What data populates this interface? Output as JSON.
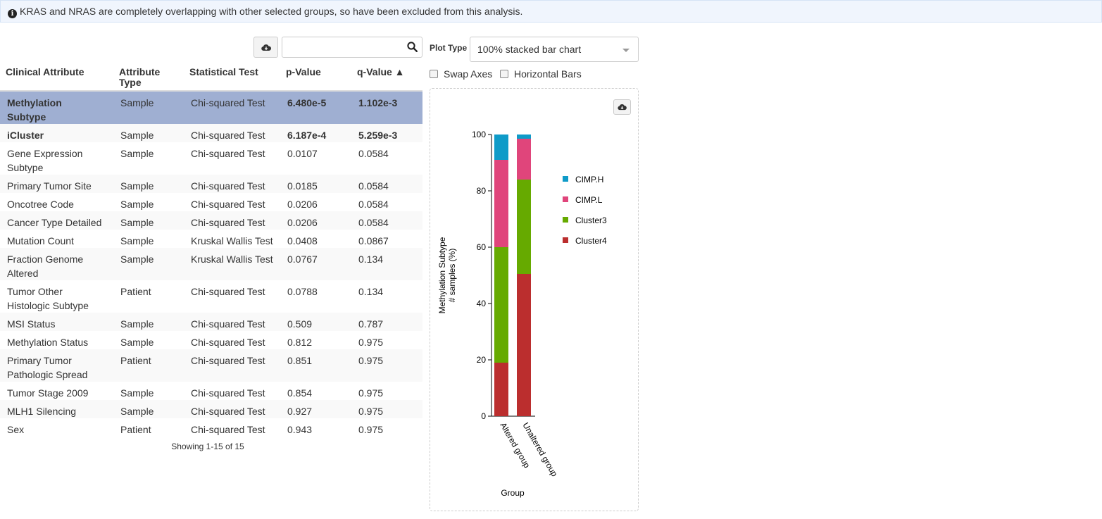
{
  "alert": {
    "icon": "info-icon",
    "text": "KRAS and NRAS are completely overlapping with other selected groups, so have been excluded from this analysis."
  },
  "toolbar": {
    "download_icon": "cloud-download-icon",
    "search_value": "",
    "search_icon": "search-icon"
  },
  "table": {
    "headers": {
      "attribute": "Clinical Attribute",
      "type_line1": "Attribute",
      "type_line2": "Type",
      "test": "Statistical Test",
      "p": "p-Value",
      "q": "q-Value ▲"
    },
    "rows": [
      {
        "attr_lines": [
          "Methylation",
          "Subtype"
        ],
        "type": "Sample",
        "test": "Chi-squared Test",
        "p": "6.480e-5",
        "q": "1.102e-3",
        "significant": true,
        "selected": true
      },
      {
        "attr_lines": [
          "iCluster"
        ],
        "type": "Sample",
        "test": "Chi-squared Test",
        "p": "6.187e-4",
        "q": "5.259e-3",
        "significant": true,
        "selected": false
      },
      {
        "attr_lines": [
          "Gene Expression",
          "Subtype"
        ],
        "type": "Sample",
        "test": "Chi-squared Test",
        "p": "0.0107",
        "q": "0.0584",
        "significant": false,
        "selected": false
      },
      {
        "attr_lines": [
          "Primary Tumor Site"
        ],
        "type": "Sample",
        "test": "Chi-squared Test",
        "p": "0.0185",
        "q": "0.0584",
        "significant": false,
        "selected": false
      },
      {
        "attr_lines": [
          "Oncotree Code"
        ],
        "type": "Sample",
        "test": "Chi-squared Test",
        "p": "0.0206",
        "q": "0.0584",
        "significant": false,
        "selected": false
      },
      {
        "attr_lines": [
          "Cancer Type Detailed"
        ],
        "type": "Sample",
        "test": "Chi-squared Test",
        "p": "0.0206",
        "q": "0.0584",
        "significant": false,
        "selected": false
      },
      {
        "attr_lines": [
          "Mutation Count"
        ],
        "type": "Sample",
        "test": "Kruskal Wallis Test",
        "p": "0.0408",
        "q": "0.0867",
        "significant": false,
        "selected": false
      },
      {
        "attr_lines": [
          "Fraction Genome",
          "Altered"
        ],
        "type": "Sample",
        "test": "Kruskal Wallis Test",
        "p": "0.0767",
        "q": "0.134",
        "significant": false,
        "selected": false
      },
      {
        "attr_lines": [
          "Tumor Other",
          "Histologic Subtype"
        ],
        "type": "Patient",
        "test": "Chi-squared Test",
        "p": "0.0788",
        "q": "0.134",
        "significant": false,
        "selected": false
      },
      {
        "attr_lines": [
          "MSI Status"
        ],
        "type": "Sample",
        "test": "Chi-squared Test",
        "p": "0.509",
        "q": "0.787",
        "significant": false,
        "selected": false
      },
      {
        "attr_lines": [
          "Methylation Status"
        ],
        "type": "Sample",
        "test": "Chi-squared Test",
        "p": "0.812",
        "q": "0.975",
        "significant": false,
        "selected": false
      },
      {
        "attr_lines": [
          "Primary Tumor",
          "Pathologic Spread"
        ],
        "type": "Patient",
        "test": "Chi-squared Test",
        "p": "0.851",
        "q": "0.975",
        "significant": false,
        "selected": false
      },
      {
        "attr_lines": [
          "Tumor Stage 2009"
        ],
        "type": "Sample",
        "test": "Chi-squared Test",
        "p": "0.854",
        "q": "0.975",
        "significant": false,
        "selected": false
      },
      {
        "attr_lines": [
          "MLH1 Silencing"
        ],
        "type": "Sample",
        "test": "Chi-squared Test",
        "p": "0.927",
        "q": "0.975",
        "significant": false,
        "selected": false
      },
      {
        "attr_lines": [
          "Sex"
        ],
        "type": "Patient",
        "test": "Chi-squared Test",
        "p": "0.943",
        "q": "0.975",
        "significant": false,
        "selected": false
      }
    ],
    "showing": "Showing 1-15 of 15"
  },
  "plot_controls": {
    "plot_type_label": "Plot Type",
    "plot_type_value": "100% stacked bar chart",
    "swap_axes_label": "Swap Axes",
    "swap_axes_checked": false,
    "horizontal_bars_label": "Horizontal Bars",
    "horizontal_bars_checked": false
  },
  "colors": {
    "selected_row": "#9fafd2",
    "stripe_row": "#f9f9f9",
    "CIMP.H": "#0f9bc8",
    "CIMP.L": "#e0457b",
    "Cluster3": "#66aa00",
    "Cluster4": "#bb2e2e"
  },
  "chart_data": {
    "type": "bar",
    "stacked": "percent",
    "categories": [
      "Altered group",
      "Unaltered group"
    ],
    "series": [
      {
        "name": "Cluster4",
        "values": [
          19,
          50.5
        ]
      },
      {
        "name": "Cluster3",
        "values": [
          41,
          33.5
        ]
      },
      {
        "name": "CIMP.L",
        "values": [
          31,
          14.5
        ]
      },
      {
        "name": "CIMP.H",
        "values": [
          9,
          1.5
        ]
      }
    ],
    "legend_order": [
      "CIMP.H",
      "CIMP.L",
      "Cluster3",
      "Cluster4"
    ],
    "xlabel": "Group",
    "ylabel_line1": "Methylation Subtype",
    "ylabel_line2": "# samples (%)",
    "ylim": [
      0,
      100
    ],
    "yticks": [
      0,
      20,
      40,
      60,
      80,
      100
    ],
    "grid": false,
    "legend_position": "right"
  }
}
